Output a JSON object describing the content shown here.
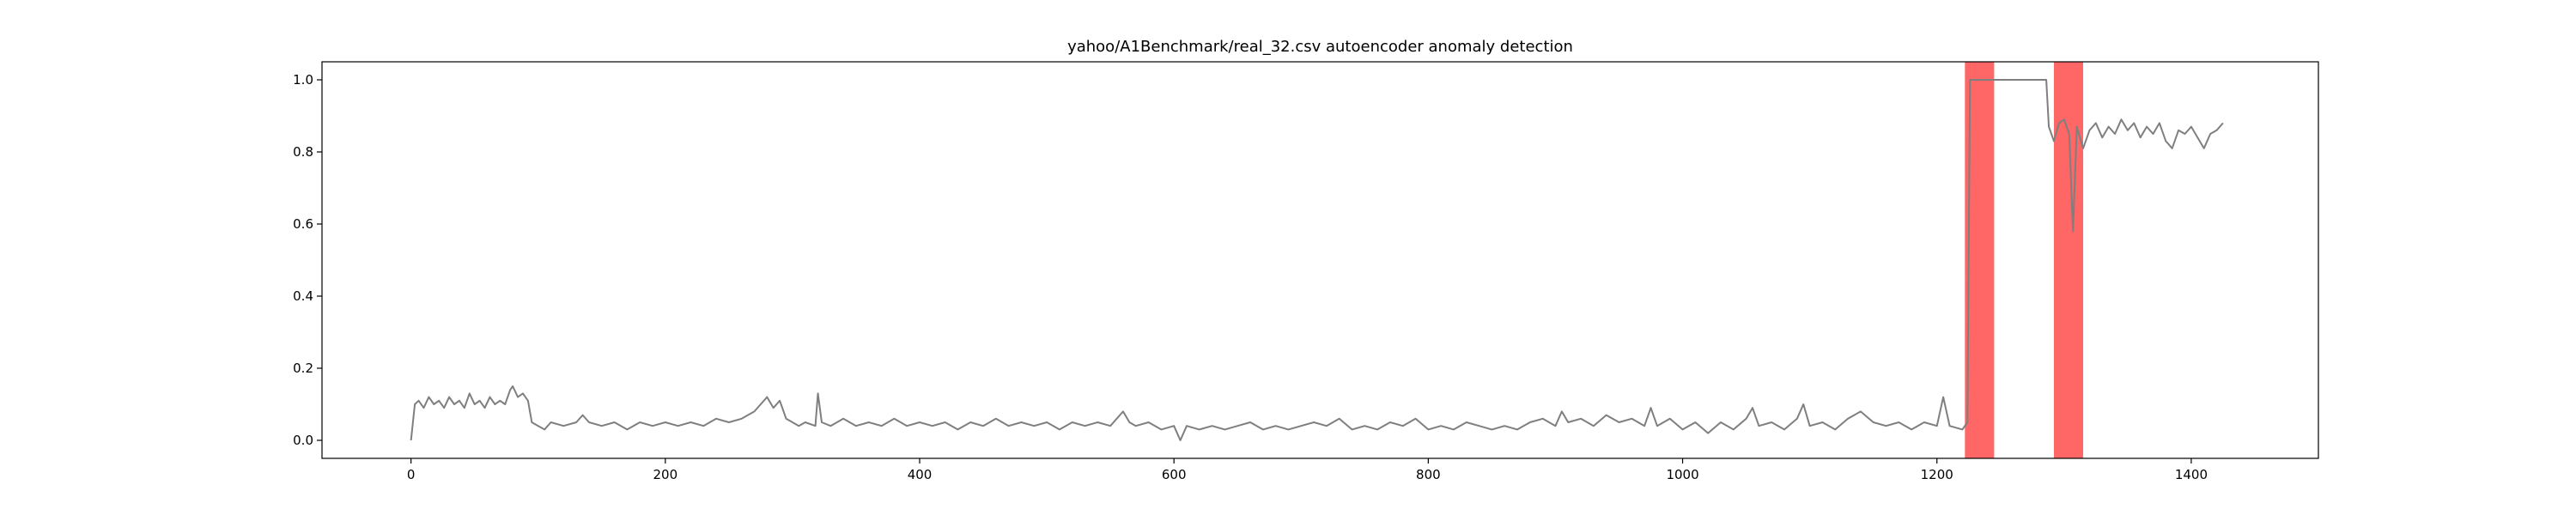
{
  "chart_data": {
    "type": "line",
    "title": "yahoo/A1Benchmark/real_32.csv autoencoder anomaly detection",
    "xlabel": "",
    "ylabel": "",
    "xlim": [
      -70,
      1500
    ],
    "ylim": [
      -0.05,
      1.05
    ],
    "x_ticks": [
      0,
      200,
      400,
      600,
      800,
      1000,
      1200,
      1400
    ],
    "y_ticks": [
      0.0,
      0.2,
      0.4,
      0.6,
      0.8,
      1.0
    ],
    "grid": false,
    "legend": "none",
    "series": [
      {
        "color": "#7f7f7f",
        "points": [
          [
            0,
            0.0
          ],
          [
            3,
            0.1
          ],
          [
            6,
            0.11
          ],
          [
            10,
            0.09
          ],
          [
            14,
            0.12
          ],
          [
            18,
            0.1
          ],
          [
            22,
            0.11
          ],
          [
            26,
            0.09
          ],
          [
            30,
            0.12
          ],
          [
            34,
            0.1
          ],
          [
            38,
            0.11
          ],
          [
            42,
            0.09
          ],
          [
            46,
            0.13
          ],
          [
            50,
            0.1
          ],
          [
            54,
            0.11
          ],
          [
            58,
            0.09
          ],
          [
            62,
            0.12
          ],
          [
            66,
            0.1
          ],
          [
            70,
            0.11
          ],
          [
            74,
            0.1
          ],
          [
            78,
            0.14
          ],
          [
            80,
            0.15
          ],
          [
            84,
            0.12
          ],
          [
            88,
            0.13
          ],
          [
            92,
            0.11
          ],
          [
            95,
            0.05
          ],
          [
            100,
            0.04
          ],
          [
            105,
            0.03
          ],
          [
            110,
            0.05
          ],
          [
            120,
            0.04
          ],
          [
            130,
            0.05
          ],
          [
            135,
            0.07
          ],
          [
            140,
            0.05
          ],
          [
            150,
            0.04
          ],
          [
            160,
            0.05
          ],
          [
            170,
            0.03
          ],
          [
            180,
            0.05
          ],
          [
            190,
            0.04
          ],
          [
            200,
            0.05
          ],
          [
            210,
            0.04
          ],
          [
            220,
            0.05
          ],
          [
            230,
            0.04
          ],
          [
            240,
            0.06
          ],
          [
            250,
            0.05
          ],
          [
            260,
            0.06
          ],
          [
            270,
            0.08
          ],
          [
            275,
            0.1
          ],
          [
            280,
            0.12
          ],
          [
            285,
            0.09
          ],
          [
            290,
            0.11
          ],
          [
            295,
            0.06
          ],
          [
            300,
            0.05
          ],
          [
            305,
            0.04
          ],
          [
            310,
            0.05
          ],
          [
            318,
            0.04
          ],
          [
            320,
            0.13
          ],
          [
            323,
            0.05
          ],
          [
            330,
            0.04
          ],
          [
            340,
            0.06
          ],
          [
            350,
            0.04
          ],
          [
            360,
            0.05
          ],
          [
            370,
            0.04
          ],
          [
            380,
            0.06
          ],
          [
            390,
            0.04
          ],
          [
            400,
            0.05
          ],
          [
            410,
            0.04
          ],
          [
            420,
            0.05
          ],
          [
            430,
            0.03
          ],
          [
            440,
            0.05
          ],
          [
            450,
            0.04
          ],
          [
            460,
            0.06
          ],
          [
            470,
            0.04
          ],
          [
            480,
            0.05
          ],
          [
            490,
            0.04
          ],
          [
            500,
            0.05
          ],
          [
            510,
            0.03
          ],
          [
            520,
            0.05
          ],
          [
            530,
            0.04
          ],
          [
            540,
            0.05
          ],
          [
            550,
            0.04
          ],
          [
            560,
            0.08
          ],
          [
            565,
            0.05
          ],
          [
            570,
            0.04
          ],
          [
            580,
            0.05
          ],
          [
            590,
            0.03
          ],
          [
            600,
            0.04
          ],
          [
            605,
            0.0
          ],
          [
            610,
            0.04
          ],
          [
            620,
            0.03
          ],
          [
            630,
            0.04
          ],
          [
            640,
            0.03
          ],
          [
            650,
            0.04
          ],
          [
            660,
            0.05
          ],
          [
            670,
            0.03
          ],
          [
            680,
            0.04
          ],
          [
            690,
            0.03
          ],
          [
            700,
            0.04
          ],
          [
            710,
            0.05
          ],
          [
            720,
            0.04
          ],
          [
            730,
            0.06
          ],
          [
            740,
            0.03
          ],
          [
            750,
            0.04
          ],
          [
            760,
            0.03
          ],
          [
            770,
            0.05
          ],
          [
            780,
            0.04
          ],
          [
            790,
            0.06
          ],
          [
            800,
            0.03
          ],
          [
            810,
            0.04
          ],
          [
            820,
            0.03
          ],
          [
            830,
            0.05
          ],
          [
            840,
            0.04
          ],
          [
            850,
            0.03
          ],
          [
            860,
            0.04
          ],
          [
            870,
            0.03
          ],
          [
            880,
            0.05
          ],
          [
            890,
            0.06
          ],
          [
            900,
            0.04
          ],
          [
            905,
            0.08
          ],
          [
            910,
            0.05
          ],
          [
            920,
            0.06
          ],
          [
            930,
            0.04
          ],
          [
            940,
            0.07
          ],
          [
            950,
            0.05
          ],
          [
            960,
            0.06
          ],
          [
            970,
            0.04
          ],
          [
            975,
            0.09
          ],
          [
            980,
            0.04
          ],
          [
            990,
            0.06
          ],
          [
            1000,
            0.03
          ],
          [
            1010,
            0.05
          ],
          [
            1020,
            0.02
          ],
          [
            1030,
            0.05
          ],
          [
            1040,
            0.03
          ],
          [
            1050,
            0.06
          ],
          [
            1055,
            0.09
          ],
          [
            1060,
            0.04
          ],
          [
            1070,
            0.05
          ],
          [
            1080,
            0.03
          ],
          [
            1090,
            0.06
          ],
          [
            1095,
            0.1
          ],
          [
            1100,
            0.04
          ],
          [
            1110,
            0.05
          ],
          [
            1120,
            0.03
          ],
          [
            1130,
            0.06
          ],
          [
            1140,
            0.08
          ],
          [
            1150,
            0.05
          ],
          [
            1160,
            0.04
          ],
          [
            1170,
            0.05
          ],
          [
            1180,
            0.03
          ],
          [
            1190,
            0.05
          ],
          [
            1200,
            0.04
          ],
          [
            1205,
            0.12
          ],
          [
            1210,
            0.04
          ],
          [
            1220,
            0.03
          ],
          [
            1224,
            0.05
          ],
          [
            1226,
            1.0
          ],
          [
            1286,
            1.0
          ],
          [
            1288,
            0.87
          ],
          [
            1292,
            0.83
          ],
          [
            1296,
            0.88
          ],
          [
            1300,
            0.89
          ],
          [
            1304,
            0.85
          ],
          [
            1307,
            0.58
          ],
          [
            1310,
            0.87
          ],
          [
            1315,
            0.81
          ],
          [
            1320,
            0.86
          ],
          [
            1325,
            0.88
          ],
          [
            1330,
            0.84
          ],
          [
            1335,
            0.87
          ],
          [
            1340,
            0.85
          ],
          [
            1345,
            0.89
          ],
          [
            1350,
            0.86
          ],
          [
            1355,
            0.88
          ],
          [
            1360,
            0.84
          ],
          [
            1365,
            0.87
          ],
          [
            1370,
            0.85
          ],
          [
            1375,
            0.88
          ],
          [
            1380,
            0.83
          ],
          [
            1385,
            0.81
          ],
          [
            1390,
            0.86
          ],
          [
            1395,
            0.85
          ],
          [
            1400,
            0.87
          ],
          [
            1405,
            0.84
          ],
          [
            1410,
            0.81
          ],
          [
            1415,
            0.85
          ],
          [
            1420,
            0.86
          ],
          [
            1425,
            0.88
          ]
        ]
      }
    ],
    "anomaly_regions": [
      {
        "start": 1222,
        "end": 1245,
        "color": "#ff0000",
        "opacity": 0.6
      },
      {
        "start": 1292,
        "end": 1315,
        "color": "#ff0000",
        "opacity": 0.6
      }
    ]
  }
}
